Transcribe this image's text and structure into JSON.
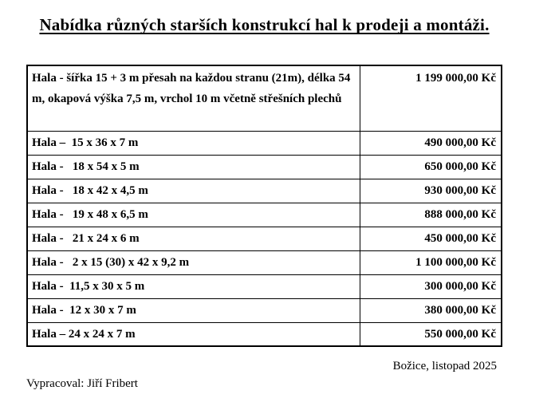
{
  "title": "Nabídka různých starších konstrukcí hal k prodeji a montáži.",
  "table": {
    "rows": [
      {
        "description": "Hala - šířka 15 + 3 m přesah na každou stranu (21m), délka 54 m, okapová výška 7,5 m, vrchol 10 m včetně střešních plechů",
        "price": "1 199 000,00 Kč"
      },
      {
        "description": "Hala –  15 x 36 x 7 m",
        "price": "490 000,00 Kč"
      },
      {
        "description": "Hala -   18 x 54 x 5 m",
        "price": "650 000,00 Kč"
      },
      {
        "description": "Hala -   18 x 42 x 4,5 m",
        "price": "930 000,00 Kč"
      },
      {
        "description": "Hala -   19 x 48 x 6,5 m",
        "price": "888 000,00 Kč"
      },
      {
        "description": "Hala -   21 x 24 x 6 m",
        "price": "450 000,00 Kč"
      },
      {
        "description": "Hala -   2 x 15 (30) x 42 x 9,2 m",
        "price": "1 100 000,00 Kč"
      },
      {
        "description": "Hala -  11,5 x 30 x 5 m",
        "price": "300 000,00 Kč"
      },
      {
        "description": "Hala -  12 x 30 x 7 m",
        "price": "380 000,00 Kč"
      },
      {
        "description": "Hala – 24 x 24 x 7 m",
        "price": "550 000,00 Kč"
      }
    ]
  },
  "footer": {
    "place_date": "Božice, listopad 2025",
    "prepared_by": "Vypracoval: Jiří Fribert"
  }
}
